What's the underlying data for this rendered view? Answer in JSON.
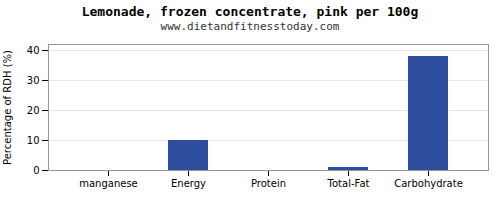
{
  "chart_data": {
    "type": "bar",
    "title": "Lemonade, frozen concentrate, pink per 100g",
    "subtitle": "www.dietandfitnesstoday.com",
    "categories": [
      "manganese",
      "Energy",
      "Protein",
      "Total-Fat",
      "Carbohydrate"
    ],
    "values": [
      0,
      10,
      0,
      1,
      38
    ],
    "color": "#2e4d9e",
    "ylabel": "Percentage of RDH (%)",
    "ylim": [
      0,
      42
    ],
    "yticks": [
      0,
      10,
      20,
      30,
      40
    ],
    "grid": true
  }
}
